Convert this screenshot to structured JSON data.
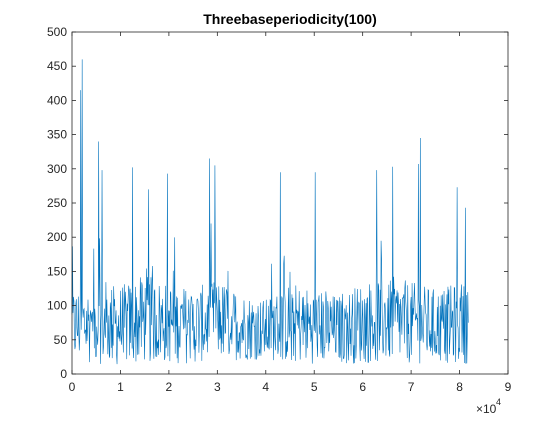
{
  "chart_data": {
    "type": "line",
    "title": "Threebaseperiodicity(100)",
    "xlabel": "",
    "ylabel": "",
    "xlim": [
      0,
      90000
    ],
    "ylim": [
      0,
      500
    ],
    "x_exponent_label": "×10",
    "x_exponent_power": "4",
    "x_ticks": [
      0,
      1,
      2,
      3,
      4,
      5,
      6,
      7,
      8,
      9
    ],
    "y_ticks": [
      0,
      50,
      100,
      150,
      200,
      250,
      300,
      350,
      400,
      450,
      500
    ],
    "grid": false,
    "legend": "none",
    "series_color": "#0072BD",
    "x_range": [
      0,
      81800
    ],
    "sample_step": 100,
    "peaks": [
      {
        "x": 2100,
        "y": 460
      },
      {
        "x": 1800,
        "y": 415
      },
      {
        "x": 5500,
        "y": 340
      },
      {
        "x": 6200,
        "y": 298
      },
      {
        "x": 12500,
        "y": 302
      },
      {
        "x": 15800,
        "y": 270
      },
      {
        "x": 19700,
        "y": 293
      },
      {
        "x": 28400,
        "y": 315
      },
      {
        "x": 29500,
        "y": 305
      },
      {
        "x": 43000,
        "y": 295
      },
      {
        "x": 50200,
        "y": 295
      },
      {
        "x": 62900,
        "y": 298
      },
      {
        "x": 66200,
        "y": 303
      },
      {
        "x": 71500,
        "y": 307
      },
      {
        "x": 71900,
        "y": 345
      },
      {
        "x": 79500,
        "y": 273
      },
      {
        "x": 81200,
        "y": 243
      }
    ],
    "baseline_profile": [
      {
        "x": 0,
        "base": 70,
        "amp": 55
      },
      {
        "x": 5000,
        "base": 75,
        "amp": 60
      },
      {
        "x": 10000,
        "base": 70,
        "amp": 60
      },
      {
        "x": 15000,
        "base": 80,
        "amp": 65
      },
      {
        "x": 20000,
        "base": 75,
        "amp": 60
      },
      {
        "x": 25000,
        "base": 70,
        "amp": 55
      },
      {
        "x": 30000,
        "base": 80,
        "amp": 60
      },
      {
        "x": 35000,
        "base": 70,
        "amp": 50
      },
      {
        "x": 40000,
        "base": 65,
        "amp": 45
      },
      {
        "x": 45000,
        "base": 75,
        "amp": 60
      },
      {
        "x": 50000,
        "base": 70,
        "amp": 55
      },
      {
        "x": 55000,
        "base": 65,
        "amp": 50
      },
      {
        "x": 60000,
        "base": 75,
        "amp": 60
      },
      {
        "x": 65000,
        "base": 80,
        "amp": 65
      },
      {
        "x": 70000,
        "base": 75,
        "amp": 60
      },
      {
        "x": 75000,
        "base": 70,
        "amp": 55
      },
      {
        "x": 81800,
        "base": 75,
        "amp": 60
      }
    ]
  }
}
